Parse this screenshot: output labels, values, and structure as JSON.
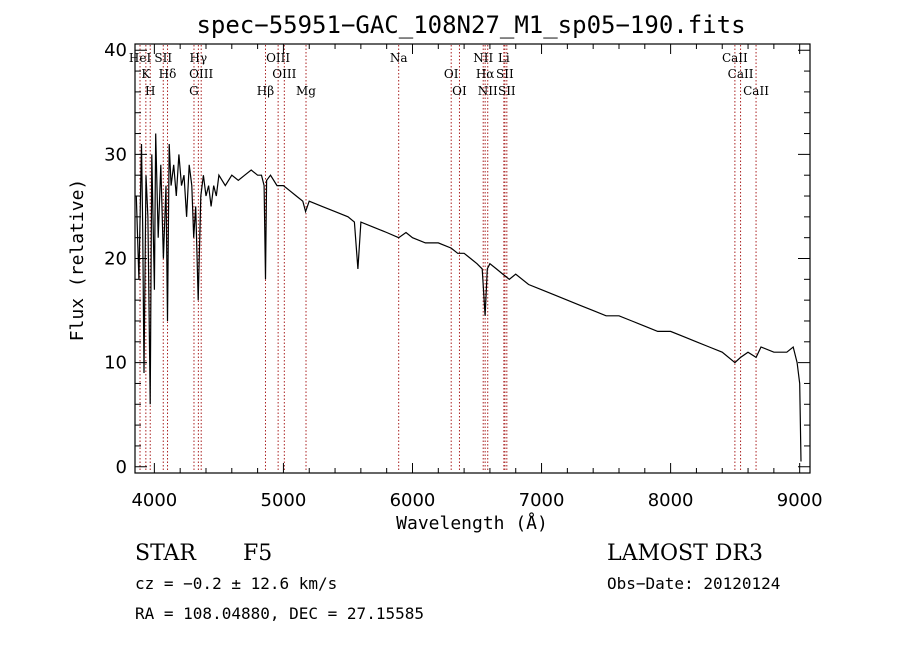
{
  "chart_data": {
    "type": "line",
    "title": "spec−55951−GAC_108N27_M1_sp05−190.fits",
    "xlabel": "Wavelength (Å)",
    "ylabel": "Flux (relative)",
    "xlim": [
      3850,
      9080
    ],
    "ylim": [
      -0.6,
      40.6
    ],
    "xticks": [
      4000,
      5000,
      6000,
      7000,
      8000,
      9000
    ],
    "yticks": [
      0,
      10,
      20,
      30,
      40
    ],
    "grid": false,
    "series": [
      {
        "name": "spectrum",
        "color": "#000000",
        "x": [
          3860,
          3880,
          3900,
          3910,
          3920,
          3935,
          3950,
          3968,
          3980,
          4000,
          4010,
          4030,
          4050,
          4070,
          4090,
          4102,
          4115,
          4130,
          4150,
          4170,
          4190,
          4210,
          4230,
          4250,
          4270,
          4290,
          4305,
          4320,
          4340,
          4360,
          4380,
          4400,
          4420,
          4440,
          4460,
          4480,
          4500,
          4550,
          4600,
          4650,
          4700,
          4750,
          4800,
          4830,
          4850,
          4861,
          4870,
          4900,
          4950,
          5000,
          5050,
          5100,
          5150,
          5172,
          5200,
          5300,
          5400,
          5500,
          5550,
          5577,
          5600,
          5700,
          5800,
          5893,
          5950,
          6000,
          6100,
          6200,
          6300,
          6350,
          6400,
          6450,
          6500,
          6540,
          6563,
          6580,
          6600,
          6650,
          6700,
          6750,
          6800,
          6900,
          7000,
          7100,
          7200,
          7300,
          7400,
          7500,
          7600,
          7700,
          7800,
          7900,
          8000,
          8100,
          8200,
          8300,
          8400,
          8498,
          8542,
          8600,
          8662,
          8700,
          8800,
          8900,
          8950,
          8980,
          9000,
          9010
        ],
        "values": [
          26,
          18,
          31,
          23,
          9,
          28,
          24,
          6,
          30,
          17,
          32,
          22,
          29,
          20,
          27,
          14,
          31,
          27,
          29,
          26,
          30,
          27,
          28,
          24,
          29,
          27,
          22,
          25,
          16,
          26,
          28,
          26,
          27,
          25,
          27,
          26,
          28,
          27,
          28,
          27.5,
          28,
          28.5,
          28,
          28,
          27,
          18,
          27.5,
          28,
          27,
          27,
          26.5,
          26,
          25.5,
          24.5,
          25.5,
          25,
          24.5,
          24,
          23.5,
          19,
          23.5,
          23,
          22.5,
          22,
          22.5,
          22,
          21.5,
          21.5,
          21,
          20.5,
          20.5,
          20,
          19.5,
          19,
          14.5,
          19,
          19.5,
          19,
          18.5,
          18,
          18.5,
          17.5,
          17,
          16.5,
          16,
          15.5,
          15,
          14.5,
          14.5,
          14,
          13.5,
          13,
          13,
          12.5,
          12,
          11.5,
          11,
          10,
          10.5,
          11,
          10.5,
          11.5,
          11,
          11,
          11.5,
          10,
          8,
          0.5
        ]
      }
    ],
    "lines": [
      {
        "wl": 3889,
        "labels": [
          "HeI"
        ]
      },
      {
        "wl": 3934,
        "labels": [
          "K"
        ]
      },
      {
        "wl": 3968,
        "labels": [
          "H"
        ]
      },
      {
        "wl": 4069,
        "labels": [
          "SII"
        ]
      },
      {
        "wl": 4102,
        "labels": [
          "Hδ"
        ]
      },
      {
        "wl": 4307,
        "labels": [
          "G"
        ]
      },
      {
        "wl": 4341,
        "labels": [
          "Hγ"
        ]
      },
      {
        "wl": 4363,
        "labels": [
          "OIII"
        ]
      },
      {
        "wl": 4861,
        "labels": [
          "Hβ"
        ]
      },
      {
        "wl": 4959,
        "labels": [
          "OIII"
        ]
      },
      {
        "wl": 5007,
        "labels": [
          "OIII"
        ]
      },
      {
        "wl": 5175,
        "labels": [
          "Mg"
        ]
      },
      {
        "wl": 5893,
        "labels": [
          "Na"
        ]
      },
      {
        "wl": 6300,
        "labels": [
          "OI"
        ]
      },
      {
        "wl": 6364,
        "labels": [
          "OI"
        ]
      },
      {
        "wl": 6548,
        "labels": [
          "NII"
        ]
      },
      {
        "wl": 6563,
        "labels": [
          "Hα"
        ]
      },
      {
        "wl": 6583,
        "labels": [
          "NII"
        ]
      },
      {
        "wl": 6708,
        "labels": [
          "Li"
        ]
      },
      {
        "wl": 6716,
        "labels": [
          "SII"
        ]
      },
      {
        "wl": 6731,
        "labels": [
          "SII"
        ]
      },
      {
        "wl": 8498,
        "labels": [
          "CaII"
        ]
      },
      {
        "wl": 8542,
        "labels": [
          "CaII"
        ]
      },
      {
        "wl": 8662,
        "labels": [
          "CaII"
        ]
      }
    ],
    "line_color": "#aa2222"
  },
  "info": {
    "object_class": "STAR",
    "subclass": "F5",
    "survey": "LAMOST DR3",
    "cz": "cz = −0.2 ± 12.6 km/s",
    "obs_date": "Obs−Date: 20120124",
    "coords": "RA = 108.04880, DEC =  27.15585"
  }
}
